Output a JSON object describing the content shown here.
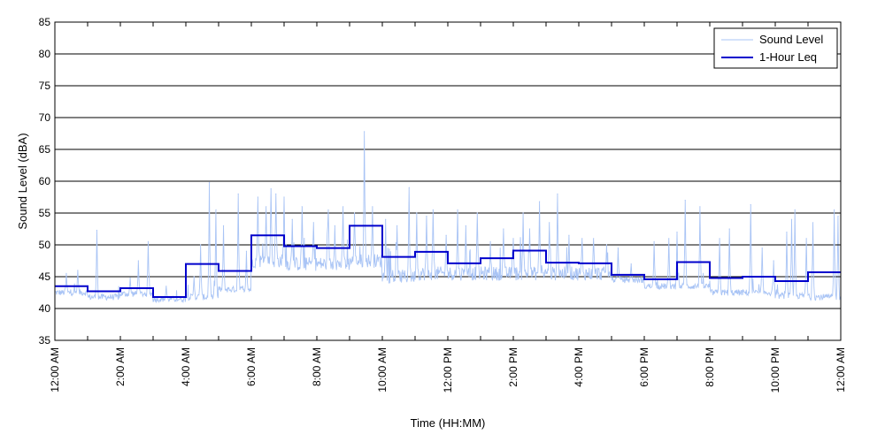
{
  "chart_data": {
    "type": "line",
    "title": "",
    "xlabel": "Time (HH:MM)",
    "ylabel": "Sound Level (dBA)",
    "ylim": [
      35,
      85
    ],
    "yticks": [
      35,
      40,
      45,
      50,
      55,
      60,
      65,
      70,
      75,
      80,
      85
    ],
    "xlim_hours": [
      0,
      24
    ],
    "x_unit": "hours",
    "xtick_hours": [
      0,
      2,
      4,
      6,
      8,
      10,
      12,
      14,
      16,
      18,
      20,
      22,
      24
    ],
    "xtick_labels": [
      "12:00 AM",
      "2:00 AM",
      "4:00 AM",
      "6:00 AM",
      "8:00 AM",
      "10:00 AM",
      "12:00 PM",
      "2:00 PM",
      "4:00 PM",
      "6:00 PM",
      "8:00 PM",
      "10:00 PM",
      "12:00 AM"
    ],
    "grid": {
      "horizontal": true,
      "vertical": false
    },
    "legend": {
      "position": "top-right",
      "entries": [
        "Sound Level",
        "1-Hour Leq"
      ]
    },
    "colors": {
      "sound_level": "#a9c4f5",
      "leq": "#0000cc",
      "grid": "#000000"
    },
    "series": [
      {
        "name": "Sound Level",
        "style": "thin",
        "baseline_by_hour": [
          42.5,
          41.8,
          42.3,
          41.5,
          41.8,
          43.0,
          47.5,
          47.0,
          47.0,
          47.5,
          45.0,
          45.5,
          45.5,
          45.5,
          45.5,
          45.5,
          45.5,
          44.5,
          43.5,
          43.5,
          42.5,
          42.5,
          42.0,
          41.8
        ],
        "peaks": [
          {
            "x": 0.35,
            "y": 45.5
          },
          {
            "x": 0.7,
            "y": 46.0
          },
          {
            "x": 1.28,
            "y": 52.3
          },
          {
            "x": 2.3,
            "y": 44.8
          },
          {
            "x": 2.55,
            "y": 47.5
          },
          {
            "x": 2.85,
            "y": 50.5
          },
          {
            "x": 3.4,
            "y": 43.5
          },
          {
            "x": 4.25,
            "y": 45.0
          },
          {
            "x": 4.45,
            "y": 50.0
          },
          {
            "x": 4.72,
            "y": 59.8
          },
          {
            "x": 4.92,
            "y": 55.5
          },
          {
            "x": 5.15,
            "y": 53.0
          },
          {
            "x": 5.6,
            "y": 58.0
          },
          {
            "x": 5.85,
            "y": 49.0
          },
          {
            "x": 6.2,
            "y": 57.5
          },
          {
            "x": 6.45,
            "y": 56.0
          },
          {
            "x": 6.6,
            "y": 58.8
          },
          {
            "x": 6.75,
            "y": 58.0
          },
          {
            "x": 7.0,
            "y": 57.5
          },
          {
            "x": 7.25,
            "y": 54.0
          },
          {
            "x": 7.55,
            "y": 56.0
          },
          {
            "x": 7.9,
            "y": 53.5
          },
          {
            "x": 8.35,
            "y": 55.5
          },
          {
            "x": 8.55,
            "y": 53.0
          },
          {
            "x": 8.8,
            "y": 56.0
          },
          {
            "x": 9.15,
            "y": 55.0
          },
          {
            "x": 9.45,
            "y": 67.8
          },
          {
            "x": 9.7,
            "y": 56.0
          },
          {
            "x": 10.1,
            "y": 54.0
          },
          {
            "x": 10.45,
            "y": 53.0
          },
          {
            "x": 10.82,
            "y": 59.0
          },
          {
            "x": 11.05,
            "y": 55.0
          },
          {
            "x": 11.35,
            "y": 54.5
          },
          {
            "x": 11.55,
            "y": 55.5
          },
          {
            "x": 11.95,
            "y": 51.5
          },
          {
            "x": 12.3,
            "y": 55.5
          },
          {
            "x": 12.55,
            "y": 53.0
          },
          {
            "x": 12.9,
            "y": 55.0
          },
          {
            "x": 13.3,
            "y": 50.5
          },
          {
            "x": 13.7,
            "y": 52.5
          },
          {
            "x": 14.0,
            "y": 51.0
          },
          {
            "x": 14.3,
            "y": 55.0
          },
          {
            "x": 14.5,
            "y": 52.5
          },
          {
            "x": 14.8,
            "y": 56.8
          },
          {
            "x": 15.1,
            "y": 53.5
          },
          {
            "x": 15.35,
            "y": 58.0
          },
          {
            "x": 15.7,
            "y": 51.5
          },
          {
            "x": 16.1,
            "y": 51.0
          },
          {
            "x": 16.45,
            "y": 51.0
          },
          {
            "x": 16.85,
            "y": 50.0
          },
          {
            "x": 17.2,
            "y": 49.5
          },
          {
            "x": 17.6,
            "y": 47.0
          },
          {
            "x": 18.3,
            "y": 50.5
          },
          {
            "x": 18.75,
            "y": 51.0
          },
          {
            "x": 19.0,
            "y": 52.0
          },
          {
            "x": 19.25,
            "y": 57.0
          },
          {
            "x": 19.7,
            "y": 56.0
          },
          {
            "x": 20.3,
            "y": 51.0
          },
          {
            "x": 20.6,
            "y": 52.5
          },
          {
            "x": 21.25,
            "y": 56.3
          },
          {
            "x": 21.6,
            "y": 49.5
          },
          {
            "x": 21.95,
            "y": 47.5
          },
          {
            "x": 22.35,
            "y": 52.0
          },
          {
            "x": 22.5,
            "y": 54.0
          },
          {
            "x": 22.6,
            "y": 55.5
          },
          {
            "x": 22.95,
            "y": 51.0
          },
          {
            "x": 23.15,
            "y": 53.5
          },
          {
            "x": 23.8,
            "y": 55.5
          },
          {
            "x": 23.92,
            "y": 54.5
          }
        ]
      },
      {
        "name": "1-Hour Leq",
        "style": "step",
        "x_hours": [
          0,
          1,
          2,
          3,
          4,
          5,
          6,
          7,
          8,
          9,
          10,
          11,
          12,
          13,
          14,
          15,
          16,
          17,
          18,
          19,
          20,
          21,
          22,
          23
        ],
        "values": [
          43.5,
          42.7,
          43.2,
          41.8,
          47.0,
          45.9,
          51.5,
          49.8,
          49.5,
          53.0,
          48.1,
          48.9,
          47.1,
          47.9,
          49.1,
          47.2,
          47.1,
          45.3,
          44.6,
          47.3,
          44.8,
          45.0,
          44.3,
          45.7
        ]
      }
    ]
  }
}
